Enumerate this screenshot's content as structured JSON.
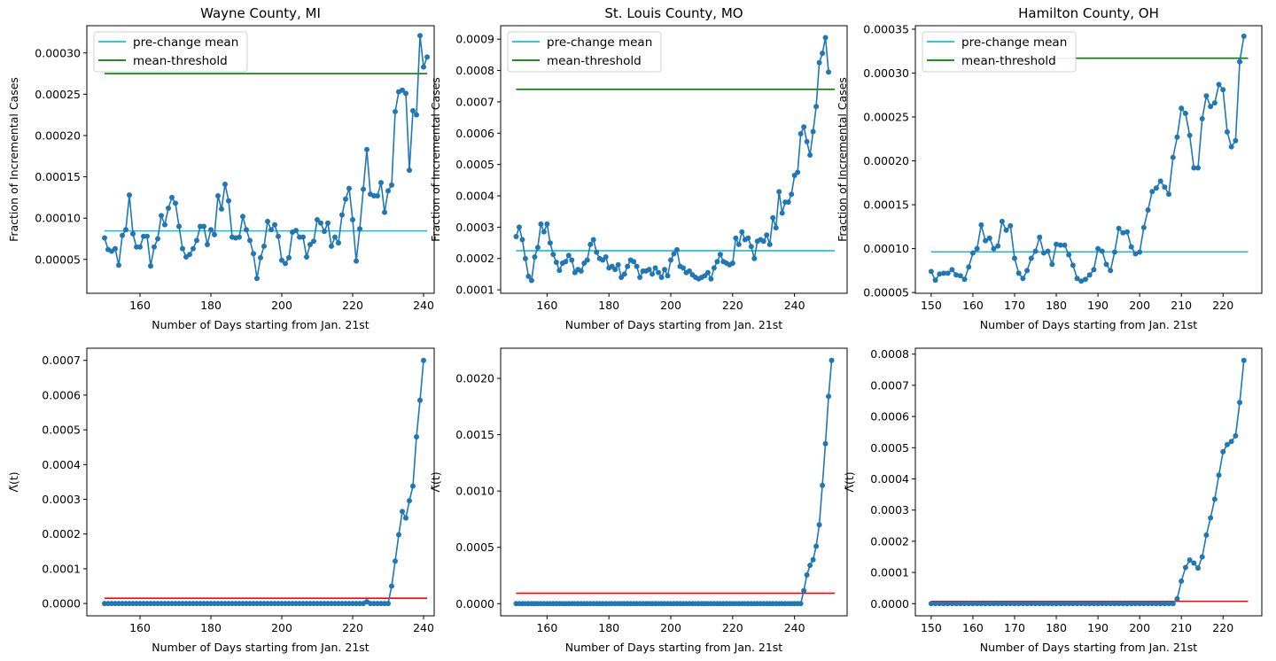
{
  "colors": {
    "series": "#1f77b4",
    "pre_change": "#17becf",
    "threshold": "#008000",
    "lambda_threshold": "#ff0000"
  },
  "chart_data": [
    {
      "id": "wayne-cases",
      "type": "line",
      "title": "Wayne County, MI",
      "xlabel": "Number of Days starting from Jan. 21st",
      "ylabel": "Fraction of Incremental Cases",
      "xlim": [
        145,
        243
      ],
      "ylim": [
        9e-06,
        0.000333
      ],
      "xticks": [
        160,
        180,
        200,
        220,
        240
      ],
      "xtick_labels": [
        "160",
        "180",
        "200",
        "220",
        "240"
      ],
      "yticks": [
        5e-05,
        0.0001,
        0.00015,
        0.0002,
        0.00025,
        0.0003
      ],
      "ytick_labels": [
        "0.00005",
        "0.00010",
        "0.00015",
        "0.00020",
        "0.00025",
        "0.00030"
      ],
      "x_start": 150,
      "values": [
        7.6e-05,
        6.2e-05,
        6e-05,
        6.3e-05,
        4.3e-05,
        7.9e-05,
        8.6e-05,
        0.000128,
        8.1e-05,
        6.5e-05,
        6.5e-05,
        7.8e-05,
        7.8e-05,
        4.2e-05,
        6.5e-05,
        7.5e-05,
        0.000103,
        9.2e-05,
        0.000112,
        0.000125,
        0.000118,
        9e-05,
        6.3e-05,
        5.3e-05,
        5.6e-05,
        6.3e-05,
        7.3e-05,
        9e-05,
        9e-05,
        6.8e-05,
        8.6e-05,
        8e-05,
        0.000127,
        0.000111,
        0.000141,
        0.000121,
        7.7e-05,
        7.6e-05,
        7.7e-05,
        0.000102,
        8.6e-05,
        7.3e-05,
        5.7e-05,
        2.7e-05,
        5.2e-05,
        6.6e-05,
        9.6e-05,
        8.6e-05,
        9.2e-05,
        7.8e-05,
        4.9e-05,
        4.5e-05,
        5.2e-05,
        8.3e-05,
        8.5e-05,
        7.7e-05,
        7.7e-05,
        5.3e-05,
        6.8e-05,
        7.2e-05,
        9.8e-05,
        9.4e-05,
        8.4e-05,
        9.4e-05,
        6.6e-05,
        7.7e-05,
        7e-05,
        0.000104,
        0.000123,
        0.000136,
        9.8e-05,
        4.8e-05,
        8.7e-05,
        0.000135,
        0.000183,
        0.000129,
        0.000127,
        0.000127,
        0.000143,
        0.000107,
        0.000133,
        0.00014,
        0.000229,
        0.000253,
        0.000255,
        0.000251,
        0.000158,
        0.00023,
        0.000225,
        0.000321,
        0.000283,
        0.000295
      ],
      "lines": [
        {
          "name": "pre-change mean",
          "y": 8.45e-05,
          "x_range": [
            150,
            241
          ]
        },
        {
          "name": "mean-threshold",
          "y": 0.000275,
          "x_range": [
            150,
            241
          ]
        }
      ],
      "legend": [
        "pre-change mean",
        "mean-threshold"
      ],
      "legend_loc": "upper-left"
    },
    {
      "id": "stlouis-cases",
      "type": "line",
      "title": "St. Louis County, MO",
      "xlabel": "Number of Days starting from Jan. 21st",
      "ylabel": "Fraction of Incremental Cases",
      "xlim": [
        145,
        257
      ],
      "ylim": [
        8.9e-05,
        0.000943
      ],
      "xticks": [
        160,
        180,
        200,
        220,
        240
      ],
      "xtick_labels": [
        "160",
        "180",
        "200",
        "220",
        "240"
      ],
      "yticks": [
        0.0001,
        0.0002,
        0.0003,
        0.0004,
        0.0005,
        0.0006,
        0.0007,
        0.0008,
        0.0009
      ],
      "ytick_labels": [
        "0.0001",
        "0.0002",
        "0.0003",
        "0.0004",
        "0.0005",
        "0.0006",
        "0.0007",
        "0.0008",
        "0.0009"
      ],
      "x_start": 150,
      "values": [
        0.00027,
        0.0003,
        0.00026,
        0.0002,
        0.000143,
        0.00013,
        0.000205,
        0.000235,
        0.00031,
        0.000285,
        0.00031,
        0.00025,
        0.000213,
        0.000188,
        0.000162,
        0.000185,
        0.00019,
        0.00021,
        0.000195,
        0.000155,
        0.000165,
        0.00016,
        0.000185,
        0.000195,
        0.000245,
        0.00026,
        0.00022,
        0.0002,
        0.000195,
        0.000205,
        0.00017,
        0.000175,
        0.000165,
        0.00018,
        0.00014,
        0.00015,
        0.000175,
        0.000195,
        0.00019,
        0.000175,
        0.00014,
        0.00016,
        0.00016,
        0.000165,
        0.00015,
        0.00017,
        0.000155,
        0.00014,
        0.000165,
        0.000145,
        0.000195,
        0.000215,
        0.000228,
        0.000175,
        0.00017,
        0.000155,
        0.00016,
        0.000148,
        0.00014,
        0.000135,
        0.00014,
        0.000145,
        0.000155,
        0.000135,
        0.00017,
        0.00019,
        0.000213,
        0.00019,
        0.000185,
        0.00018,
        0.000185,
        0.000265,
        0.000245,
        0.000285,
        0.00026,
        0.000265,
        0.000238,
        0.0002,
        0.000255,
        0.00026,
        0.000255,
        0.000275,
        0.000245,
        0.00033,
        0.000298,
        0.000413,
        0.000345,
        0.00038,
        0.00038,
        0.000405,
        0.000465,
        0.000475,
        0.000598,
        0.00062,
        0.000573,
        0.00053,
        0.000605,
        0.000685,
        0.000825,
        0.000855,
        0.000905,
        0.000795
      ],
      "lines": [
        {
          "name": "pre-change mean",
          "y": 0.000225,
          "x_range": [
            150,
            253
          ]
        },
        {
          "name": "mean-threshold",
          "y": 0.00074,
          "x_range": [
            150,
            253
          ]
        }
      ],
      "legend": [
        "pre-change mean",
        "mean-threshold"
      ],
      "legend_loc": "upper-left"
    },
    {
      "id": "hamilton-cases",
      "type": "line",
      "title": "Hamilton County, OH",
      "xlabel": "Number of Days starting from Jan. 21st",
      "ylabel": "Fraction of Incremental Cases",
      "xlim": [
        146.2,
        229.3
      ],
      "ylim": [
        4.91e-05,
        0.000354
      ],
      "xticks": [
        150,
        160,
        170,
        180,
        190,
        200,
        210,
        220
      ],
      "xtick_labels": [
        "150",
        "160",
        "170",
        "180",
        "190",
        "200",
        "210",
        "220"
      ],
      "yticks": [
        5e-05,
        0.0001,
        0.00015,
        0.0002,
        0.00025,
        0.0003,
        0.00035
      ],
      "ytick_labels": [
        "0.00005",
        "0.00010",
        "0.00015",
        "0.00020",
        "0.00025",
        "0.00030",
        "0.00035"
      ],
      "x_start": 150,
      "values": [
        7.4e-05,
        6.4e-05,
        7.1e-05,
        7.2e-05,
        7.2e-05,
        7.6e-05,
        7e-05,
        6.9e-05,
        6.5e-05,
        7.9e-05,
        9.5e-05,
        0.0001,
        0.000127,
        0.000109,
        0.000112,
        0.0001,
        0.000103,
        0.000131,
        0.000121,
        0.000126,
        8.9e-05,
        7.2e-05,
        6.6e-05,
        7.5e-05,
        8.9e-05,
        9.7e-05,
        0.000113,
        9.5e-05,
        9.7e-05,
        8.2e-05,
        0.000105,
        0.000104,
        0.000104,
        9.3e-05,
        8.1e-05,
        6.6e-05,
        6.3e-05,
        6.5e-05,
        7e-05,
        7.6e-05,
        0.0001,
        9.7e-05,
        8.2e-05,
        7.5e-05,
        9.6e-05,
        0.000123,
        0.000118,
        0.000119,
        0.000102,
        9.4e-05,
        9.6e-05,
        0.000124,
        0.000144,
        0.000165,
        0.000169,
        0.000177,
        0.00017,
        0.000162,
        0.000204,
        0.000227,
        0.00026,
        0.000254,
        0.000229,
        0.000192,
        0.000192,
        0.000248,
        0.000274,
        0.000262,
        0.000266,
        0.000287,
        0.000281,
        0.000233,
        0.000216,
        0.000223,
        0.000313,
        0.000342
      ],
      "lines": [
        {
          "name": "pre-change mean",
          "y": 9.63e-05,
          "x_range": [
            150,
            226
          ]
        },
        {
          "name": "mean-threshold",
          "y": 0.000317,
          "x_range": [
            150,
            226
          ]
        }
      ],
      "legend": [
        "pre-change mean",
        "mean-threshold"
      ],
      "legend_loc": "upper-left"
    },
    {
      "id": "wayne-lambda",
      "type": "line",
      "title": "",
      "xlabel": "Number of Days starting from Jan. 21st",
      "ylabel": "Λ̃(t)",
      "xlim": [
        145,
        243
      ],
      "ylim": [
        -3.55e-05,
        0.000735
      ],
      "xticks": [
        160,
        180,
        200,
        220,
        240
      ],
      "xtick_labels": [
        "160",
        "180",
        "200",
        "220",
        "240"
      ],
      "yticks": [
        0,
        0.0001,
        0.0002,
        0.0003,
        0.0004,
        0.0005,
        0.0006,
        0.0007
      ],
      "ytick_labels": [
        "0.0000",
        "0.0001",
        "0.0002",
        "0.0003",
        "0.0004",
        "0.0005",
        "0.0006",
        "0.0007"
      ],
      "x_start": 150,
      "zeros_count": 74,
      "tail": [
        5e-06,
        0,
        0,
        0,
        0,
        0,
        0,
        5e-05,
        0.000122,
        0.000198,
        0.000265,
        0.000246,
        0.000296,
        0.000338,
        0.00048,
        0.000585,
        0.0007
      ],
      "lines": [
        {
          "name": "threshold",
          "y": 1.5e-05,
          "x_range": [
            150,
            241
          ]
        }
      ]
    },
    {
      "id": "stlouis-lambda",
      "type": "line",
      "title": "",
      "xlabel": "Number of Days starting from Jan. 21st",
      "ylabel": "Λ̃(t)",
      "xlim": [
        145,
        257
      ],
      "ylim": [
        -0.000108,
        0.002268
      ],
      "xticks": [
        160,
        180,
        200,
        220,
        240
      ],
      "xtick_labels": [
        "160",
        "180",
        "200",
        "220",
        "240"
      ],
      "yticks": [
        0,
        0.0005,
        0.001,
        0.0015,
        0.002
      ],
      "ytick_labels": [
        "0.0000",
        "0.0005",
        "0.0010",
        "0.0015",
        "0.0020"
      ],
      "x_start": 150,
      "zeros_count": 93,
      "tail": [
        0.000115,
        0.000255,
        0.00034,
        0.00039,
        0.00051,
        0.0007,
        0.00105,
        0.00142,
        0.00184,
        0.00216
      ],
      "lines": [
        {
          "name": "threshold",
          "y": 9.2e-05,
          "x_range": [
            150,
            253
          ]
        }
      ]
    },
    {
      "id": "hamilton-lambda",
      "type": "line",
      "title": "",
      "xlabel": "Number of Days starting from Jan. 21st",
      "ylabel": "Λ̃(t)",
      "xlim": [
        146.2,
        229.3
      ],
      "ylim": [
        -3.9e-05,
        0.000819
      ],
      "xticks": [
        150,
        160,
        170,
        180,
        190,
        200,
        210,
        220
      ],
      "xtick_labels": [
        "150",
        "160",
        "170",
        "180",
        "190",
        "200",
        "210",
        "220"
      ],
      "yticks": [
        0,
        0.0001,
        0.0002,
        0.0003,
        0.0004,
        0.0005,
        0.0006,
        0.0007,
        0.0008
      ],
      "ytick_labels": [
        "0.0000",
        "0.0001",
        "0.0002",
        "0.0003",
        "0.0004",
        "0.0005",
        "0.0006",
        "0.0007",
        "0.0008"
      ],
      "x_start": 150,
      "zeros_count": 59,
      "tail": [
        1.6e-05,
        7.2e-05,
        0.000116,
        0.00014,
        0.00013,
        0.000114,
        0.00015,
        0.00022,
        0.000275,
        0.000335,
        0.000412,
        0.000487,
        0.00051,
        0.00052,
        0.000538,
        0.000645,
        0.00078
      ],
      "lines": [
        {
          "name": "threshold",
          "y": 7.5e-06,
          "x_range": [
            150,
            226
          ]
        }
      ]
    }
  ]
}
